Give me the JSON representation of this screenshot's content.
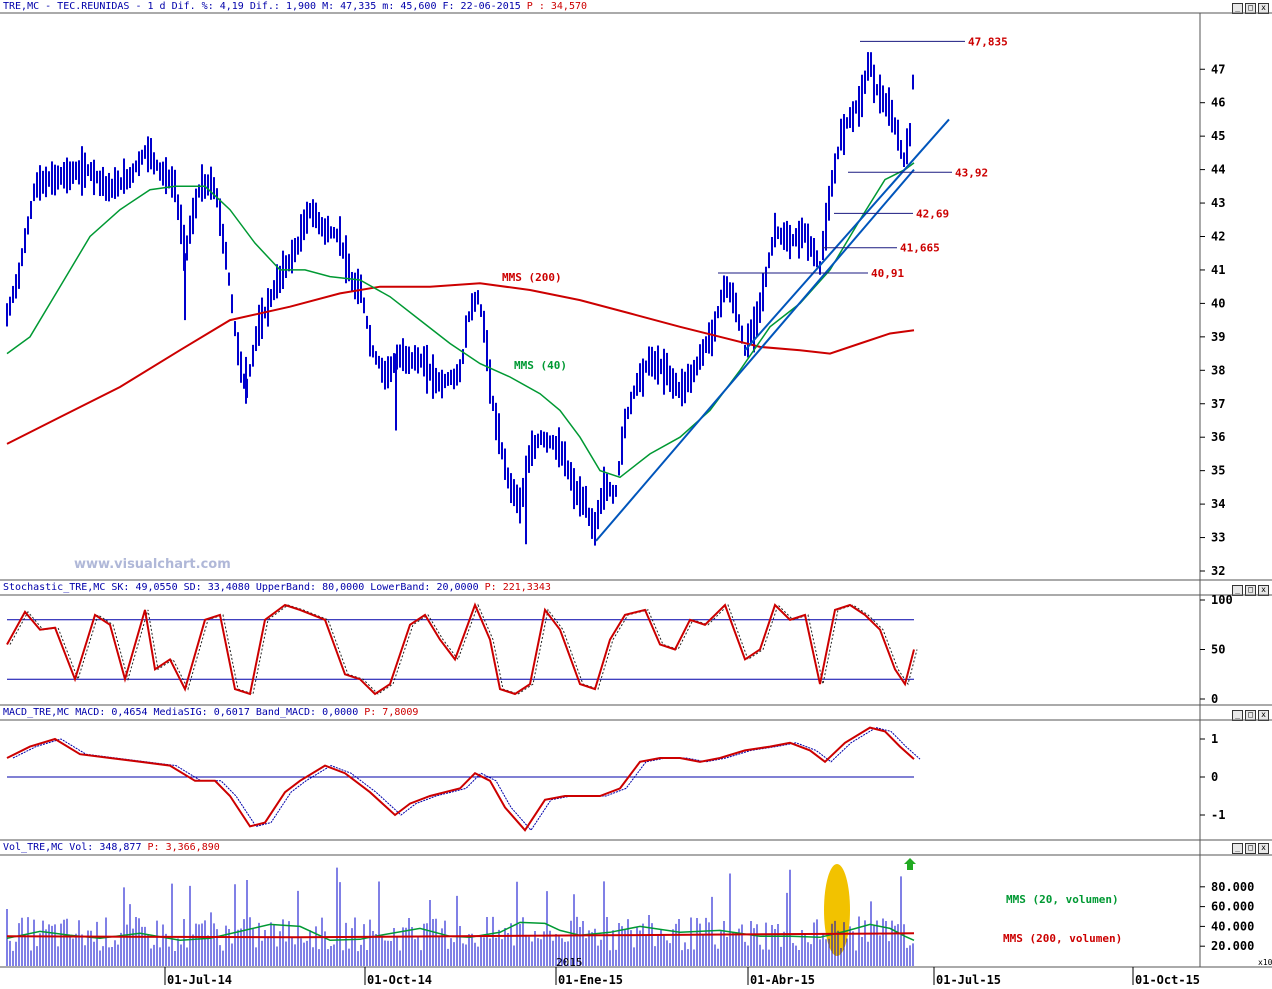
{
  "header": {
    "main": "TRE,MC - TEC.REUNIDAS -  1 d Dif. %: 4,19 Dif.: 1,900 M: 47,335 m: 45,600 F: 22-06-2015",
    "main_p": "P : 34,570",
    "stoch": "Stochastic_TRE,MC SK: 49,0550 SD: 33,4080 UpperBand: 80,0000 LowerBand: 20,0000",
    "stoch_p": "P: 221,3343",
    "macd": "MACD_TRE,MC MACD: 0,4654 MediaSIG: 0,6017 Band_MACD: 0,0000",
    "macd_p": "P: 7,8009",
    "vol": "Vol_TRE,MC Vol: 348,877",
    "vol_p": "P: 3,366,890"
  },
  "watermark": "www.visualchart.com",
  "window_buttons": [
    "_",
    "□",
    "x"
  ],
  "colors": {
    "price": "#0000cc",
    "mms40": "#009933",
    "mms200": "#cc0000",
    "trend": "#0055bb",
    "level_text": "#cc0000",
    "stoch_line": "#cc0000",
    "band": "#0000aa",
    "vol_highlight": "#f2c200"
  },
  "chart_data": [
    {
      "type": "line",
      "panel": "price",
      "ylim": [
        32,
        48
      ],
      "yticks": [
        "47",
        "46",
        "45",
        "44",
        "43",
        "42",
        "41",
        "40",
        "39",
        "38",
        "37",
        "36",
        "35",
        "34",
        "33",
        "32"
      ],
      "series": [
        {
          "label": "MMS (200)"
        },
        {
          "label": "MMS (40)"
        }
      ],
      "annotations": [
        "47,835",
        "43,92",
        "42,69",
        "41,665",
        "40,91"
      ],
      "support_levels": [
        47.835,
        43.92,
        42.69,
        41.665,
        40.91
      ]
    },
    {
      "type": "line",
      "panel": "stochastic",
      "ylim": [
        0,
        100
      ],
      "yticks": [
        "100",
        "50",
        "0"
      ],
      "bands": [
        80,
        20
      ],
      "last": {
        "SK": 49.055,
        "SD": 33.408
      }
    },
    {
      "type": "line",
      "panel": "macd",
      "yticks": [
        "1",
        "0",
        "-1"
      ],
      "last": {
        "MACD": 0.4654,
        "MediaSIG": 0.6017
      }
    },
    {
      "type": "bar",
      "panel": "volume",
      "yticks": [
        "80.000",
        "60.000",
        "40.000",
        "20.000"
      ],
      "multiplier": "x10",
      "series": [
        {
          "label": "MMS (20, volumen)"
        },
        {
          "label": "MMS (200, volumen)"
        }
      ]
    }
  ],
  "x_axis": {
    "labels": [
      "01-Jul-14",
      "01-Oct-14",
      "01-Ene-15",
      "01-Abr-15",
      "01-Jul-15",
      "01-Oct-15"
    ],
    "year_marker": "2015"
  }
}
